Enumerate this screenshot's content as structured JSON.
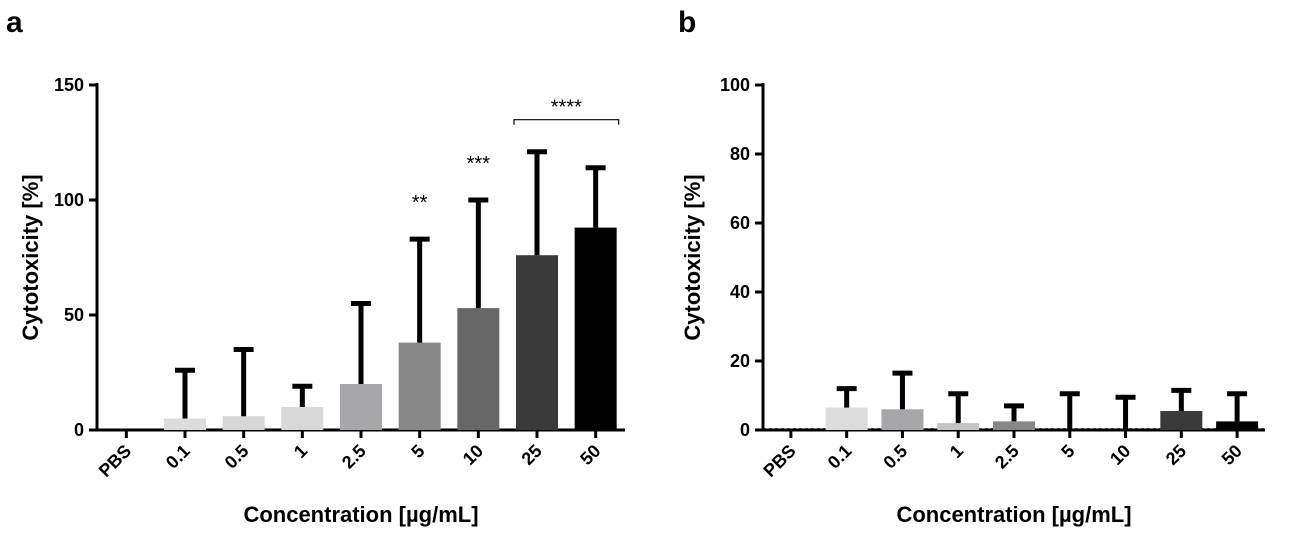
{
  "chart_data": [
    {
      "panel": "a",
      "type": "bar",
      "xlabel": "Concentration [µg/mL]",
      "ylabel": "Cytotoxicity [%]",
      "ylim": [
        0,
        150
      ],
      "yticks": [
        "0",
        "50",
        "100",
        "150"
      ],
      "categories": [
        "PBS",
        "0.1",
        "0.5",
        "1",
        "2.5",
        "5",
        "10",
        "25",
        "50"
      ],
      "values": [
        0,
        5,
        6,
        10,
        20,
        38,
        53,
        76,
        88
      ],
      "error_upper": [
        0,
        26,
        35,
        19,
        55,
        83,
        100,
        121,
        114
      ],
      "colors": [
        "#e3e3e3",
        "#dcdcdc",
        "#d6d6d6",
        "#d8d8d8",
        "#a7a7a9",
        "#878787",
        "#676767",
        "#3a3a3a",
        "#000000"
      ],
      "annotations": [
        {
          "label": "**",
          "category": "5"
        },
        {
          "label": "***",
          "category": "10"
        },
        {
          "label": "****",
          "from": "25",
          "to": "50"
        }
      ],
      "grid": false
    },
    {
      "panel": "b",
      "type": "bar",
      "xlabel": "Concentration [µg/mL]",
      "ylabel": "Cytotoxicity [%]",
      "ylim": [
        0,
        100
      ],
      "yticks": [
        "0",
        "20",
        "40",
        "60",
        "80",
        "100"
      ],
      "categories": [
        "PBS",
        "0.1",
        "0.5",
        "1",
        "2.5",
        "5",
        "10",
        "25",
        "50"
      ],
      "values": [
        0,
        6.5,
        6,
        2,
        2.5,
        0,
        0,
        5.5,
        2.5
      ],
      "error_upper": [
        0,
        12,
        16.5,
        10.5,
        7,
        10.5,
        9.5,
        11.5,
        10.5
      ],
      "colors": [
        "#e3e3e3",
        "#dcdcdc",
        "#a7a7a9",
        "#c4c4c4",
        "#878787",
        "#676767",
        "#555555",
        "#3a3a3a",
        "#000000"
      ],
      "annotations": [],
      "grid": false
    }
  ]
}
